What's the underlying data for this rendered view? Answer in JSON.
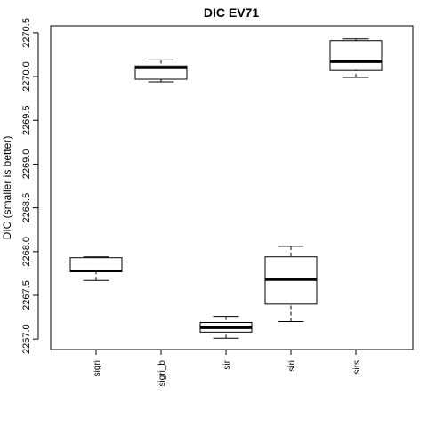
{
  "chart_data": {
    "type": "box",
    "title": "DIC EV71",
    "ylabel": "DIC (smaller is better)",
    "categories": [
      "sigri",
      "sigri_b",
      "sir",
      "siri",
      "sirs"
    ],
    "boxes": [
      {
        "min": 2267.67,
        "q1": 2267.77,
        "median": 2267.78,
        "q3": 2267.93,
        "max": 2267.94
      },
      {
        "min": 2269.94,
        "q1": 2269.97,
        "median": 2270.1,
        "q3": 2270.12,
        "max": 2270.19
      },
      {
        "min": 2267.01,
        "q1": 2267.08,
        "median": 2267.13,
        "q3": 2267.19,
        "max": 2267.26
      },
      {
        "min": 2267.2,
        "q1": 2267.4,
        "median": 2267.68,
        "q3": 2267.94,
        "max": 2268.06
      },
      {
        "min": 2269.99,
        "q1": 2270.07,
        "median": 2270.17,
        "q3": 2270.41,
        "max": 2270.43
      }
    ],
    "color": "#000000",
    "ylim": [
      2266.88,
      2270.58
    ],
    "yticks": [
      {
        "value": 2267,
        "label": "2267.0"
      },
      2267.5,
      {
        "value": 2268,
        "label": "2268.0"
      },
      2268.5,
      {
        "value": 2269,
        "label": "2269.0"
      },
      2269.5,
      {
        "value": 2270,
        "label": "2270.0"
      },
      2270.5
    ]
  }
}
